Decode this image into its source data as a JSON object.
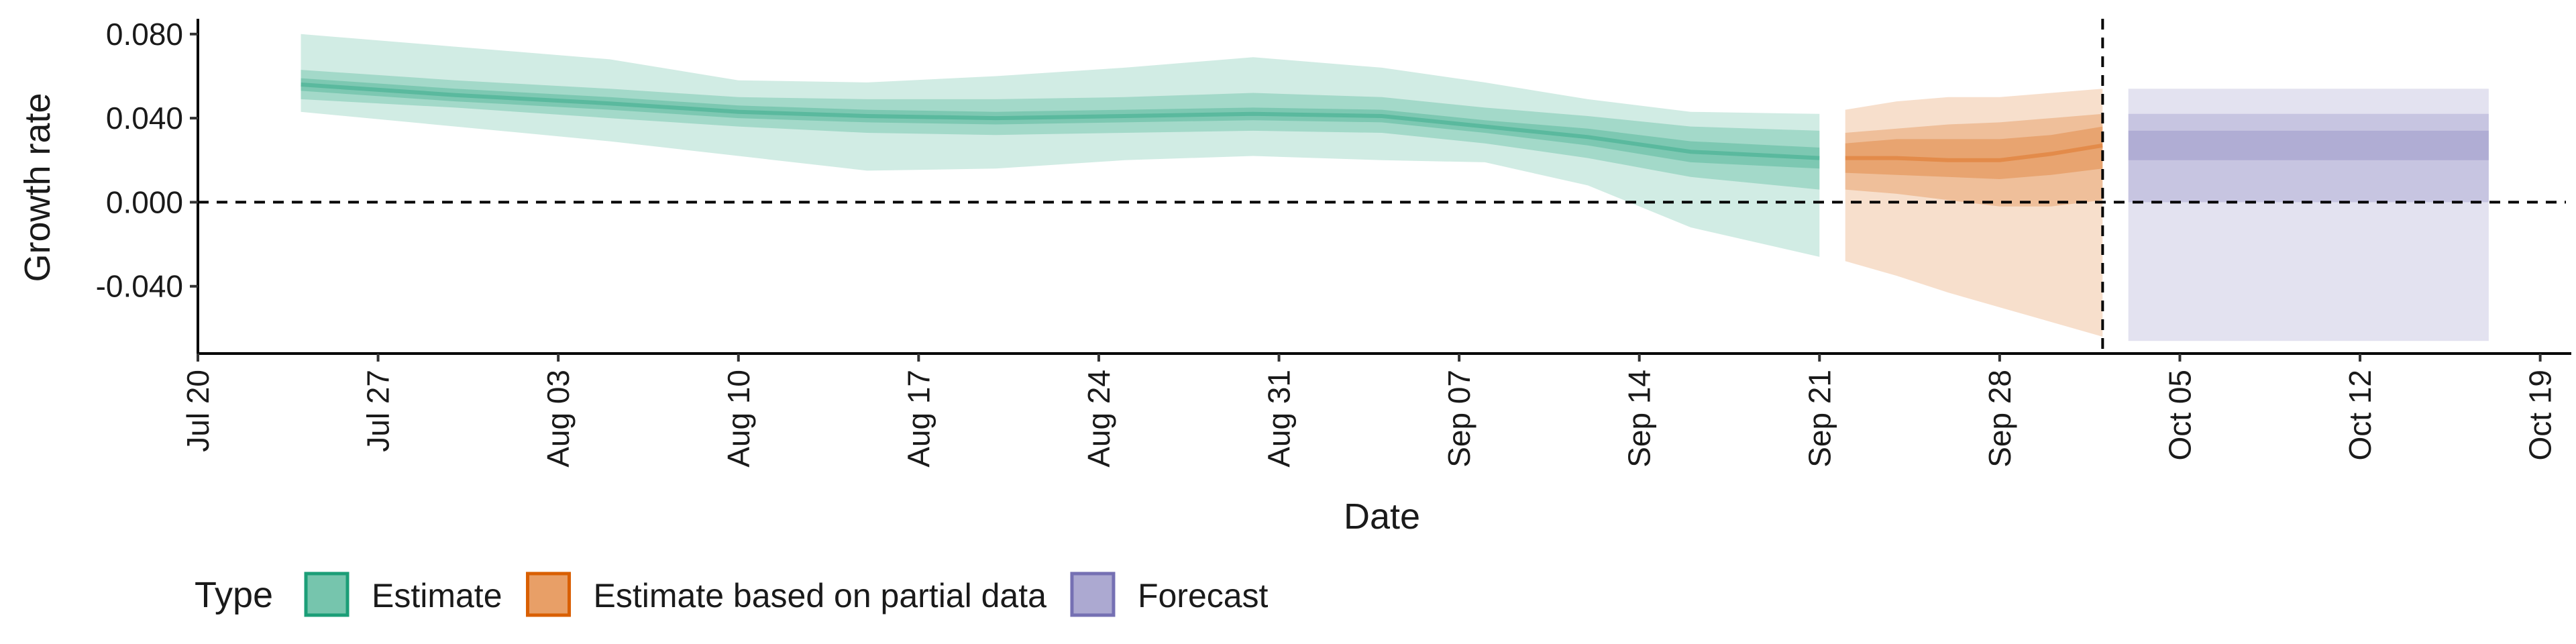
{
  "chart_data": {
    "type": "area",
    "xlabel": "Date",
    "ylabel": "Growth rate",
    "x_ticks": [
      "Jul 20",
      "Jul 27",
      "Aug 03",
      "Aug 10",
      "Aug 17",
      "Aug 24",
      "Aug 31",
      "Sep 07",
      "Sep 14",
      "Sep 21",
      "Sep 28",
      "Oct 05",
      "Oct 12",
      "Oct 19"
    ],
    "y_ticks": [
      "0.080",
      "0.040",
      "0.000",
      "-0.040"
    ],
    "y_tick_values": [
      0.08,
      0.04,
      0.0,
      -0.04
    ],
    "xlim": [
      "2020-07-20",
      "2020-10-20"
    ],
    "ylim": [
      -0.072,
      0.086
    ],
    "reference_lines": {
      "horizontal_y": 0.0,
      "vertical_x": "2020-10-02"
    },
    "legend": {
      "title": "Type",
      "position": "bottom",
      "items": [
        {
          "label": "Estimate",
          "color": "#1b9e77"
        },
        {
          "label": "Estimate based on partial data",
          "color": "#d95f02"
        },
        {
          "label": "Forecast",
          "color": "#7570b3"
        }
      ]
    },
    "series": [
      {
        "name": "Estimate",
        "color": "#1b9e77",
        "x": [
          "2020-07-24",
          "2020-07-30",
          "2020-08-05",
          "2020-08-10",
          "2020-08-15",
          "2020-08-20",
          "2020-08-25",
          "2020-08-30",
          "2020-09-04",
          "2020-09-08",
          "2020-09-12",
          "2020-09-16",
          "2020-09-21"
        ],
        "median": [
          0.056,
          0.051,
          0.047,
          0.043,
          0.041,
          0.04,
          0.041,
          0.042,
          0.041,
          0.036,
          0.031,
          0.024,
          0.021
        ],
        "inner_low": [
          0.053,
          0.048,
          0.044,
          0.04,
          0.038,
          0.037,
          0.038,
          0.039,
          0.038,
          0.033,
          0.027,
          0.019,
          0.016
        ],
        "inner_high": [
          0.059,
          0.054,
          0.05,
          0.046,
          0.044,
          0.043,
          0.044,
          0.045,
          0.044,
          0.039,
          0.035,
          0.029,
          0.026
        ],
        "mid_low": [
          0.049,
          0.045,
          0.04,
          0.036,
          0.033,
          0.032,
          0.033,
          0.034,
          0.033,
          0.028,
          0.021,
          0.012,
          0.006
        ],
        "mid_high": [
          0.063,
          0.058,
          0.054,
          0.05,
          0.049,
          0.049,
          0.05,
          0.052,
          0.05,
          0.045,
          0.041,
          0.036,
          0.034
        ],
        "outer_low": [
          0.043,
          0.036,
          0.029,
          0.022,
          0.015,
          0.016,
          0.02,
          0.022,
          0.02,
          0.019,
          0.008,
          -0.012,
          -0.026
        ],
        "outer_high": [
          0.08,
          0.074,
          0.068,
          0.058,
          0.057,
          0.06,
          0.064,
          0.069,
          0.064,
          0.057,
          0.049,
          0.043,
          0.042
        ]
      },
      {
        "name": "Estimate based on partial data",
        "color": "#d95f02",
        "x": [
          "2020-09-22",
          "2020-09-24",
          "2020-09-26",
          "2020-09-28",
          "2020-09-30",
          "2020-10-02"
        ],
        "median": [
          0.021,
          0.021,
          0.02,
          0.02,
          0.023,
          0.027
        ],
        "inner_low": [
          0.014,
          0.013,
          0.012,
          0.011,
          0.013,
          0.016
        ],
        "inner_high": [
          0.028,
          0.03,
          0.03,
          0.03,
          0.032,
          0.036
        ],
        "mid_low": [
          0.006,
          0.004,
          0.001,
          -0.002,
          -0.002,
          0.001
        ],
        "mid_high": [
          0.033,
          0.035,
          0.037,
          0.038,
          0.04,
          0.042
        ],
        "outer_low": [
          -0.028,
          -0.035,
          -0.043,
          -0.05,
          -0.057,
          -0.064
        ],
        "outer_high": [
          0.044,
          0.048,
          0.05,
          0.05,
          0.052,
          0.054
        ]
      },
      {
        "name": "Forecast",
        "color": "#7570b3",
        "x": [
          "2020-10-03",
          "2020-10-17"
        ],
        "inner_low": [
          0.02,
          0.02
        ],
        "inner_high": [
          0.034,
          0.034
        ],
        "mid_low": [
          0.0,
          0.0
        ],
        "mid_high": [
          0.042,
          0.042
        ],
        "outer_low": [
          -0.066,
          -0.066
        ],
        "outer_high": [
          0.054,
          0.054
        ]
      }
    ]
  }
}
